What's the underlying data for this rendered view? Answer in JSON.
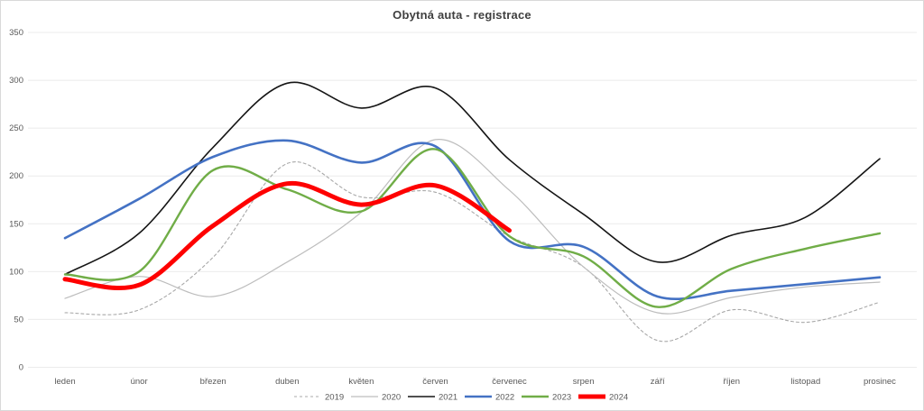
{
  "chart_data": {
    "type": "line",
    "title": "Obytná auta - registrace",
    "categories": [
      "leden",
      "únor",
      "březen",
      "duben",
      "květen",
      "červen",
      "červenec",
      "srpen",
      "září",
      "říjen",
      "listopad",
      "prosinec"
    ],
    "xlabel": "",
    "ylabel": "",
    "y_axis": {
      "min": 0,
      "max": 350,
      "step": 50,
      "tick_labels": [
        "0",
        "50",
        "100",
        "150",
        "200",
        "250",
        "300",
        "350"
      ]
    },
    "grid": true,
    "legend_position": "bottom",
    "colors": {
      "grid": "#ebebeb",
      "axis_text": "#595959",
      "title_text": "#404040"
    },
    "series": [
      {
        "name": "2019",
        "color": "#a8a8a8",
        "dash": "3 3",
        "width": 1.1,
        "values": [
          57,
          60,
          115,
          213,
          178,
          183,
          137,
          105,
          28,
          60,
          47,
          68
        ]
      },
      {
        "name": "2020",
        "color": "#bdbdbd",
        "dash": "",
        "width": 1.2,
        "values": [
          72,
          95,
          74,
          110,
          162,
          238,
          185,
          105,
          57,
          73,
          84,
          89
        ]
      },
      {
        "name": "2021",
        "color": "#151515",
        "dash": "",
        "width": 1.6,
        "values": [
          97,
          140,
          230,
          297,
          271,
          292,
          217,
          160,
          110,
          138,
          157,
          218
        ]
      },
      {
        "name": "2022",
        "color": "#4472c4",
        "dash": "",
        "width": 2.6,
        "values": [
          135,
          176,
          220,
          237,
          214,
          231,
          132,
          126,
          74,
          80,
          87,
          94
        ]
      },
      {
        "name": "2023",
        "color": "#70ad47",
        "dash": "",
        "width": 2.4,
        "values": [
          97,
          100,
          206,
          186,
          163,
          228,
          137,
          116,
          63,
          103,
          124,
          140
        ]
      },
      {
        "name": "2024",
        "color": "#fe0000",
        "dash": "",
        "width": 5,
        "values": [
          92,
          86,
          148,
          192,
          170,
          190,
          143
        ]
      }
    ]
  }
}
